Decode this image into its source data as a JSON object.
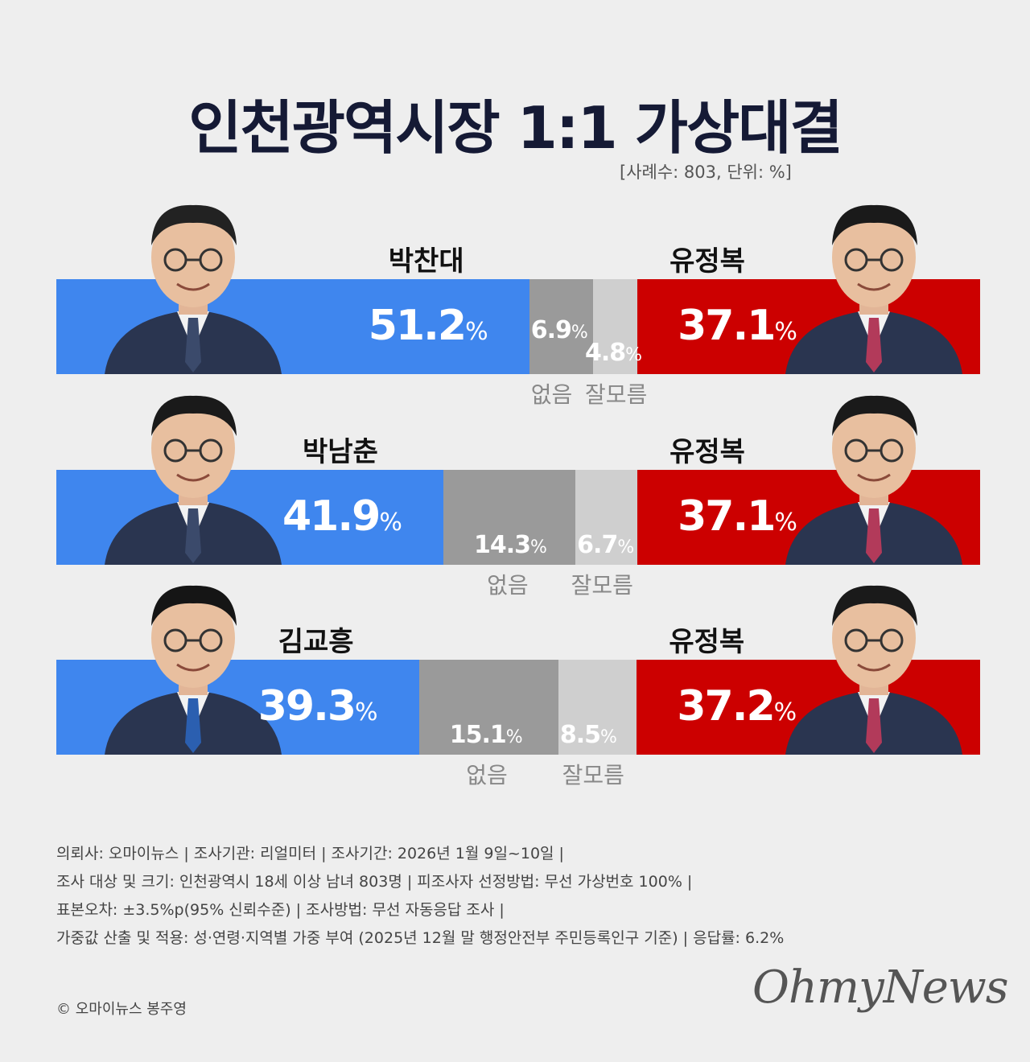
{
  "title": "인천광역시장  1:1 가상대결",
  "subtitle": "[사례수: 803,  단위: %]",
  "chart_data": {
    "type": "bar",
    "stacked": true,
    "orientation": "horizontal",
    "unit": "%",
    "categories_labels": {
      "none": "없음",
      "unknown": "잘모름"
    },
    "matchups": [
      {
        "candidate_a": "박찬대",
        "a": "51.2",
        "none": "6.9",
        "unknown": "4.8",
        "candidate_b": "유정복",
        "b": "37.1"
      },
      {
        "candidate_a": "박남춘",
        "a": "41.9",
        "none": "14.3",
        "unknown": "6.7",
        "candidate_b": "유정복",
        "b": "37.1"
      },
      {
        "candidate_a": "김교흥",
        "a": "39.3",
        "none": "15.1",
        "unknown": "8.5",
        "candidate_b": "유정복",
        "b": "37.2"
      }
    ],
    "colors": {
      "a": "#3f86ee",
      "none": "#9a9a9a",
      "unknown": "#cfcfcf",
      "b": "#cc0000"
    }
  },
  "pct_sign": "%",
  "notes": [
    "의뢰사: 오마이뉴스 | 조사기관: 리얼미터 | 조사기간: 2026년 1월 9일~10일 |",
    "조사 대상 및 크기: 인천광역시 18세 이상 남녀 803명 | 피조사자 선정방법: 무선 가상번호 100% |",
    "표본오차: ±3.5%p(95% 신뢰수준) | 조사방법: 무선 자동응답 조사 |",
    "가중값 산출 및 적용: 성·연령·지역별 가중 부여 (2025년 12월 말 행정안전부 주민등록인구 기준) | 응답률: 6.2%"
  ],
  "credit": "© 오마이뉴스 봉주영",
  "logo": "OhmyNews"
}
